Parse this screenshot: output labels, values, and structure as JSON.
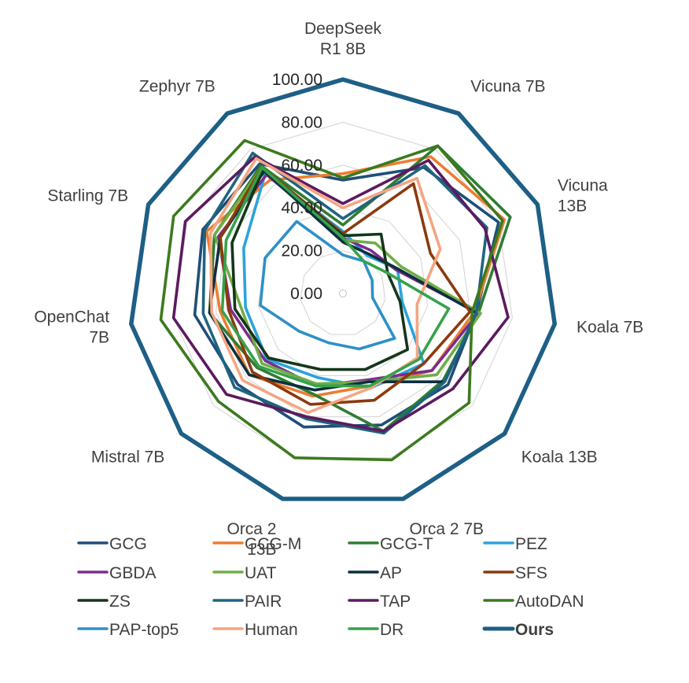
{
  "chart_data": {
    "type": "radar",
    "title": "",
    "categories": [
      [
        "DeepSeek",
        "R1 8B"
      ],
      [
        "Vicuna 7B"
      ],
      [
        "Vicuna",
        "13B"
      ],
      [
        "Koala 7B"
      ],
      [
        "Koala 13B"
      ],
      [
        "Orca 2 7B"
      ],
      [
        "Orca 2",
        "13B"
      ],
      [
        "Mistral 7B"
      ],
      [
        "OpenChat",
        "7B"
      ],
      [
        "Starling 7B"
      ],
      [
        "Zephyr 7B"
      ]
    ],
    "rlim": [
      0,
      100
    ],
    "ticks": [
      "0.00",
      "20.00",
      "40.00",
      "60.00",
      "80.00",
      "100.00"
    ],
    "grid": true,
    "legend_position": "bottom",
    "series": [
      {
        "name": "GCG",
        "color": "#1f4e79",
        "values": [
          53,
          70,
          80,
          63,
          65,
          64,
          65,
          65,
          70,
          72,
          72
        ]
      },
      {
        "name": "GCG-M",
        "color": "#ed7d31",
        "values": [
          56,
          76,
          83,
          62,
          55,
          45,
          50,
          58,
          58,
          70,
          63
        ]
      },
      {
        "name": "GCG-T",
        "color": "#2e7d32",
        "values": [
          32,
          82,
          86,
          64,
          62,
          67,
          49,
          53,
          63,
          66,
          71
        ]
      },
      {
        "name": "PEZ",
        "color": "#2aa3dd",
        "values": [
          29,
          21,
          28,
          28,
          50,
          46,
          41,
          47,
          46,
          51,
          67
        ]
      },
      {
        "name": "GBDA",
        "color": "#7b2d8e",
        "values": [
          26,
          24,
          27,
          64,
          55,
          42,
          45,
          48,
          53,
          64,
          66
        ]
      },
      {
        "name": "UAT",
        "color": "#70ad47",
        "values": [
          25,
          28,
          30,
          65,
          58,
          43,
          44,
          50,
          48,
          66,
          70
        ]
      },
      {
        "name": "AP",
        "color": "#0d2f3f",
        "values": [
          24,
          22,
          28,
          63,
          63,
          43,
          47,
          58,
          63,
          63,
          68
        ]
      },
      {
        "name": "SFS",
        "color": "#8b3a0e",
        "values": [
          28,
          61,
          45,
          60,
          50,
          52,
          54,
          56,
          54,
          63,
          70
        ]
      },
      {
        "name": "ZS",
        "color": "#14361a",
        "values": [
          27,
          33,
          23,
          27,
          40,
          37,
          37,
          46,
          51,
          57,
          69
        ]
      },
      {
        "name": "PAIR",
        "color": "#1f6480",
        "values": [
          35,
          71,
          74,
          63,
          63,
          68,
          61,
          67,
          66,
          71,
          78
        ]
      },
      {
        "name": "TAP",
        "color": "#5c1a5f",
        "values": [
          42,
          74,
          73,
          78,
          68,
          67,
          60,
          72,
          80,
          81,
          76
        ]
      },
      {
        "name": "AutoDAN",
        "color": "#3c7a1e",
        "values": [
          54,
          82,
          82,
          61,
          78,
          81,
          80,
          77,
          86,
          87,
          85
        ]
      },
      {
        "name": "PAP-top5",
        "color": "#2e90c8",
        "values": [
          18,
          18,
          15,
          14,
          32,
          27,
          24,
          27,
          39,
          40,
          40
        ]
      },
      {
        "name": "Human",
        "color": "#f4a582",
        "values": [
          40,
          64,
          50,
          35,
          46,
          46,
          58,
          62,
          62,
          68,
          75
        ]
      },
      {
        "name": "DR",
        "color": "#35a24a",
        "values": [
          26,
          18,
          23,
          50,
          47,
          45,
          45,
          52,
          57,
          60,
          70
        ]
      },
      {
        "name": "Ours",
        "color": "#1d5f86",
        "values": [
          100,
          100,
          100,
          100,
          100,
          100,
          100,
          100,
          100,
          100,
          100
        ],
        "bold": true
      }
    ]
  }
}
